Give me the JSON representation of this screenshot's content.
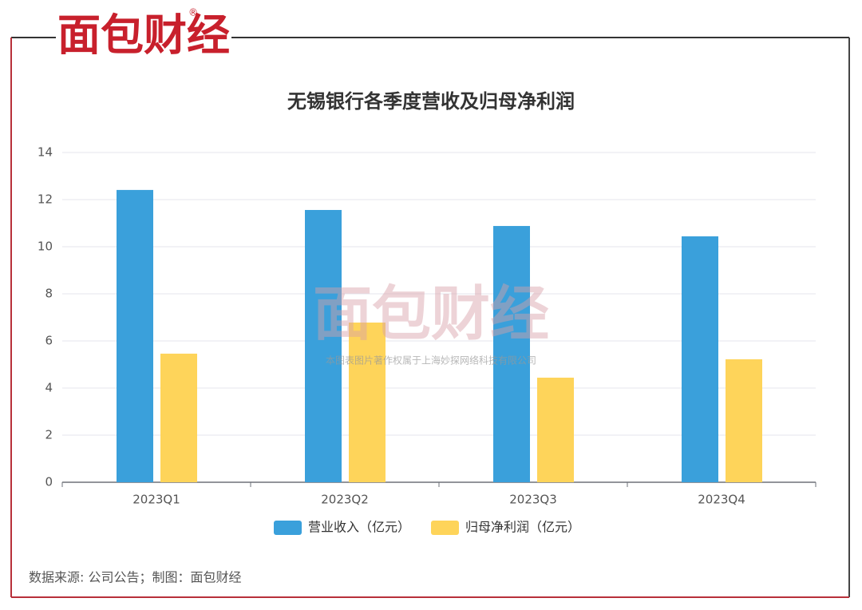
{
  "brand": {
    "logo": "面包财经",
    "mark": "®"
  },
  "chart_data": {
    "type": "bar",
    "title": "无锡银行各季度营收及归母净利润",
    "categories": [
      "2023Q1",
      "2023Q2",
      "2023Q3",
      "2023Q4"
    ],
    "series": [
      {
        "name": "营业收入（亿元）",
        "color": "#3aa0db",
        "values": [
          12.41,
          11.56,
          10.88,
          10.44
        ]
      },
      {
        "name": "归母净利润（亿元）",
        "color": "#fed45a",
        "values": [
          5.46,
          6.78,
          4.44,
          5.22
        ]
      }
    ],
    "ylim": [
      0,
      14
    ],
    "yticks": [
      0,
      2,
      4,
      6,
      8,
      10,
      12,
      14
    ],
    "grid": true,
    "legend": "bottom"
  },
  "watermark": {
    "logo": "面包财经",
    "text": "本图表图片著作权属于上海妙探网络科技有限公司"
  },
  "source": "数据来源: 公司公告；制图：面包财经"
}
